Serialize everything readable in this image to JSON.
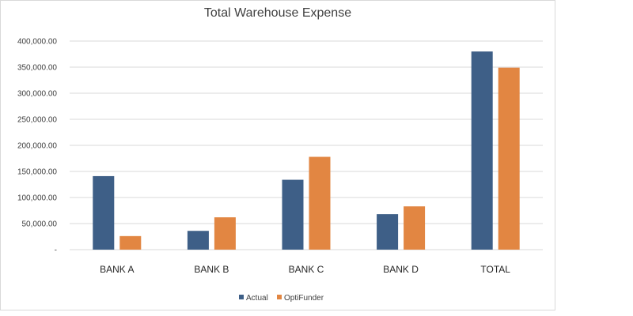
{
  "chart_data": {
    "type": "bar",
    "title": "Total Warehouse Expense",
    "xlabel": "",
    "ylabel": "",
    "categories": [
      "BANK A",
      "BANK B",
      "BANK C",
      "BANK D",
      "TOTAL"
    ],
    "series": [
      {
        "name": "Actual",
        "color": "#3e5f87",
        "values": [
          141000,
          36000,
          134000,
          68000,
          380000
        ]
      },
      {
        "name": "OptiFunder",
        "color": "#e28642",
        "values": [
          26000,
          62000,
          178000,
          83000,
          349000
        ]
      }
    ],
    "ylim": [
      0,
      400000
    ],
    "yticks": [
      0,
      50000,
      100000,
      150000,
      200000,
      250000,
      300000,
      350000,
      400000
    ],
    "ytick_labels": [
      "-",
      "50,000.00",
      "100,000.00",
      "150,000.00",
      "200,000.00",
      "250,000.00",
      "300,000.00",
      "350,000.00",
      "400,000.00"
    ],
    "grid": true,
    "legend_position": "bottom"
  }
}
